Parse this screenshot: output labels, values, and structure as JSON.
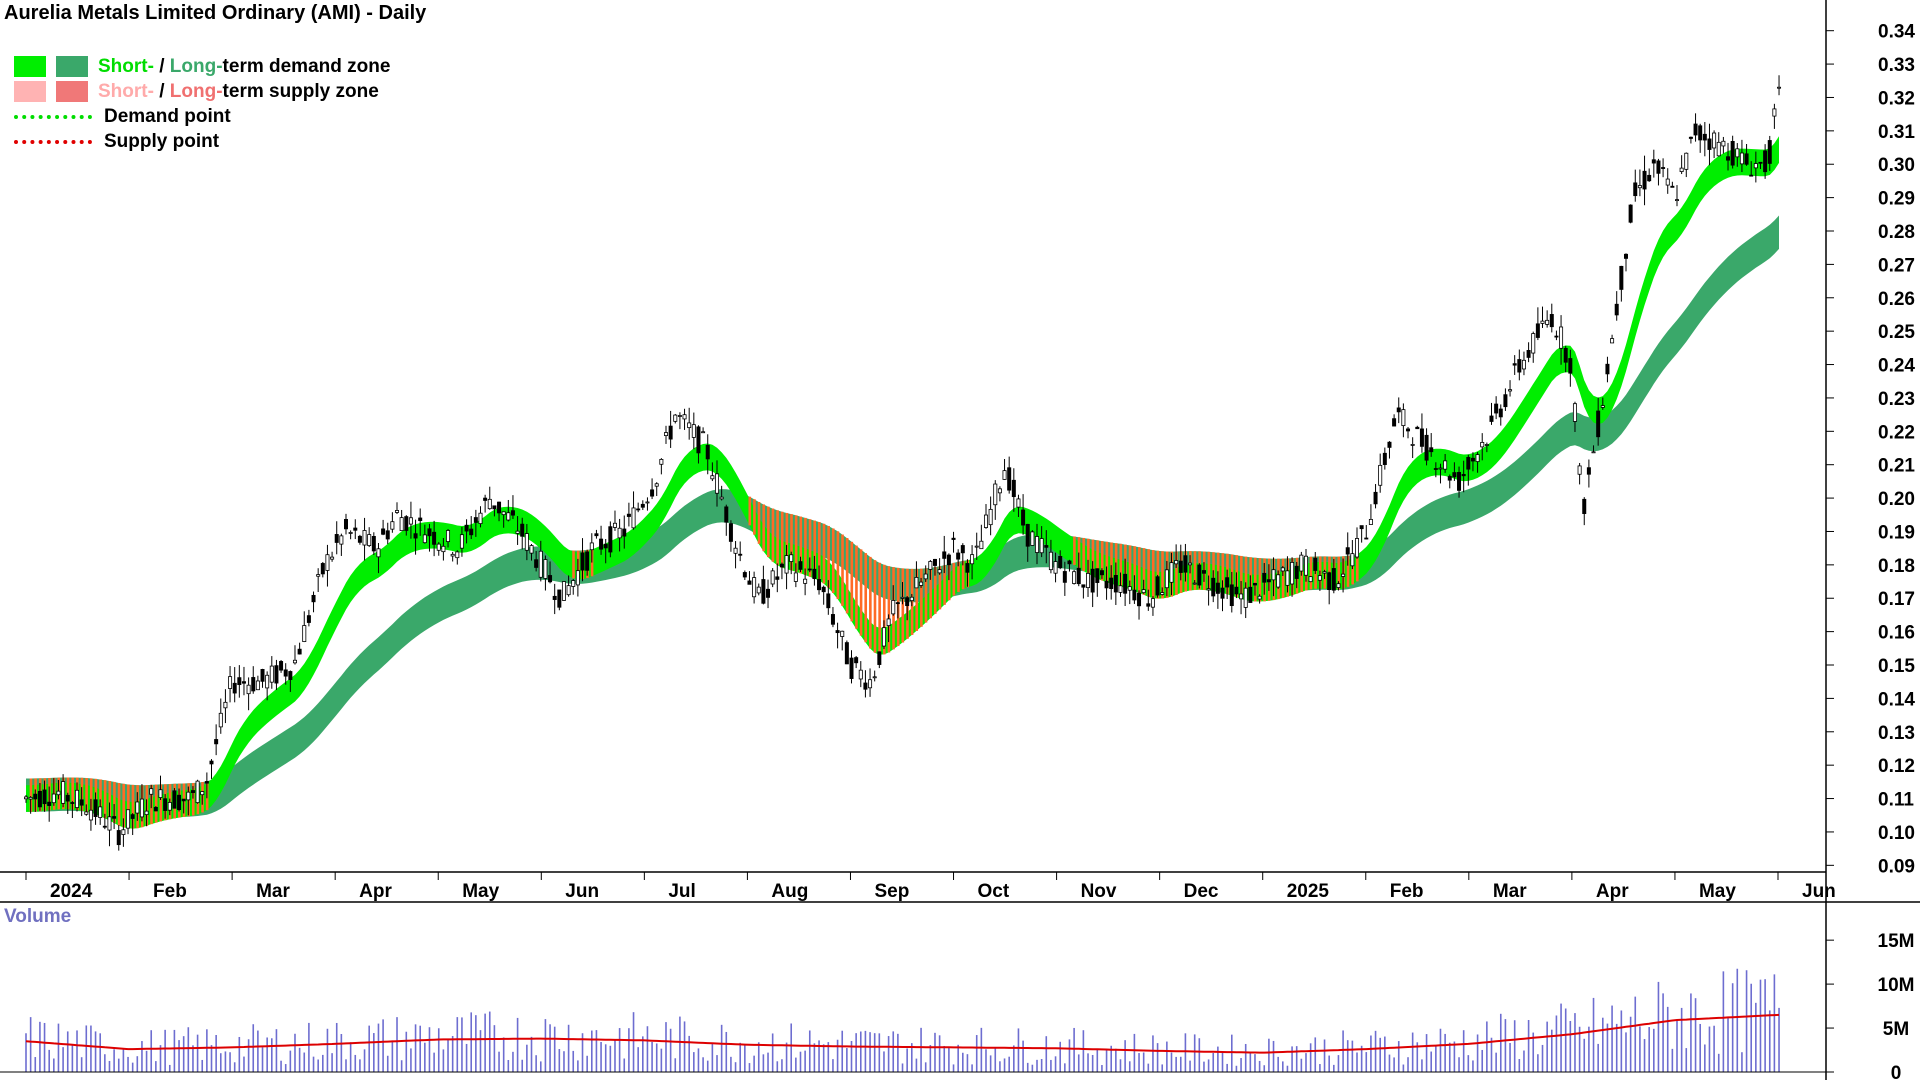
{
  "title": "Aurelia Metals Limited Ordinary (AMI) - Daily",
  "legend": {
    "row1": {
      "short": "Short-",
      "sep": " / ",
      "long": "Long-",
      "rest": "term demand zone"
    },
    "row2": {
      "short": "Short-",
      "sep": " / ",
      "long": "Long-",
      "rest": "term supply zone"
    },
    "row3": "Demand point",
    "row4": "Supply point"
  },
  "volume_label": "Volume",
  "colors": {
    "short_demand": "#00ee00",
    "long_demand": "#3aa86a",
    "short_supply": "#ffb3b3",
    "long_supply": "#f07878",
    "supply_zone_band": "#ff6a26",
    "demand_point": "#00dd00",
    "supply_point": "#e00000",
    "volume_bar": "#6d6dd0",
    "volume_avg": "#dd0000",
    "candle": "#000000"
  },
  "chart_data": {
    "type": "candlestick",
    "price_axis": {
      "ticks": [
        0.09,
        0.1,
        0.11,
        0.12,
        0.13,
        0.14,
        0.15,
        0.16,
        0.17,
        0.18,
        0.19,
        0.2,
        0.21,
        0.22,
        0.23,
        0.24,
        0.25,
        0.26,
        0.27,
        0.28,
        0.29,
        0.3,
        0.31,
        0.32,
        0.33,
        0.34
      ],
      "range": [
        0.088,
        0.345
      ]
    },
    "month_labels": [
      "2024",
      "Feb",
      "Mar",
      "Apr",
      "May",
      "Jun",
      "Jul",
      "Aug",
      "Sep",
      "Oct",
      "Nov",
      "Dec",
      "2025",
      "Feb",
      "Mar",
      "Apr",
      "May",
      "Jun"
    ],
    "month_positions": [
      0,
      1,
      2,
      3,
      4,
      5,
      6,
      7,
      8,
      9,
      10,
      11,
      12,
      13,
      14,
      15,
      16,
      17
    ],
    "price_path": [
      [
        0,
        0.11
      ],
      [
        0.3,
        0.112
      ],
      [
        0.6,
        0.108
      ],
      [
        0.9,
        0.1
      ],
      [
        1.2,
        0.11
      ],
      [
        1.6,
        0.11
      ],
      [
        1.75,
        0.115
      ],
      [
        2.0,
        0.145
      ],
      [
        2.3,
        0.145
      ],
      [
        2.6,
        0.15
      ],
      [
        2.9,
        0.18
      ],
      [
        3.1,
        0.19
      ],
      [
        3.4,
        0.185
      ],
      [
        3.6,
        0.195
      ],
      [
        3.9,
        0.19
      ],
      [
        4.2,
        0.185
      ],
      [
        4.5,
        0.2
      ],
      [
        4.8,
        0.19
      ],
      [
        5.0,
        0.18
      ],
      [
        5.2,
        0.17
      ],
      [
        5.5,
        0.185
      ],
      [
        5.8,
        0.19
      ],
      [
        6.1,
        0.205
      ],
      [
        6.3,
        0.225
      ],
      [
        6.6,
        0.215
      ],
      [
        6.9,
        0.185
      ],
      [
        7.1,
        0.17
      ],
      [
        7.4,
        0.18
      ],
      [
        7.7,
        0.175
      ],
      [
        8.0,
        0.15
      ],
      [
        8.2,
        0.145
      ],
      [
        8.4,
        0.165
      ],
      [
        8.7,
        0.175
      ],
      [
        9.0,
        0.185
      ],
      [
        9.2,
        0.18
      ],
      [
        9.5,
        0.21
      ],
      [
        9.7,
        0.19
      ],
      [
        10.0,
        0.18
      ],
      [
        10.3,
        0.175
      ],
      [
        10.6,
        0.175
      ],
      [
        10.9,
        0.17
      ],
      [
        11.2,
        0.18
      ],
      [
        11.5,
        0.175
      ],
      [
        11.8,
        0.17
      ],
      [
        12.1,
        0.175
      ],
      [
        12.4,
        0.18
      ],
      [
        12.7,
        0.175
      ],
      [
        13.0,
        0.19
      ],
      [
        13.3,
        0.225
      ],
      [
        13.6,
        0.215
      ],
      [
        13.9,
        0.205
      ],
      [
        14.2,
        0.22
      ],
      [
        14.5,
        0.24
      ],
      [
        14.8,
        0.255
      ],
      [
        15.0,
        0.24
      ],
      [
        15.1,
        0.195
      ],
      [
        15.3,
        0.23
      ],
      [
        15.6,
        0.29
      ],
      [
        15.8,
        0.3
      ],
      [
        16.0,
        0.29
      ],
      [
        16.2,
        0.31
      ],
      [
        16.5,
        0.305
      ],
      [
        16.7,
        0.3
      ],
      [
        16.9,
        0.3
      ],
      [
        17.0,
        0.32
      ]
    ],
    "series": [
      {
        "name": "Short-term demand zone",
        "type": "band"
      },
      {
        "name": "Long-term demand zone",
        "type": "band"
      },
      {
        "name": "Short-term supply zone",
        "type": "band"
      },
      {
        "name": "Long-term supply zone",
        "type": "band"
      }
    ],
    "volume_axis": {
      "ticks": [
        "0",
        "5M",
        "10M",
        "15M"
      ],
      "values": [
        0,
        5,
        10,
        15
      ],
      "max": 19,
      "unit": "M"
    },
    "volume_avg_path": [
      [
        0,
        3.5
      ],
      [
        1,
        2.6
      ],
      [
        2,
        2.8
      ],
      [
        3,
        3.2
      ],
      [
        4,
        3.7
      ],
      [
        5,
        3.8
      ],
      [
        6,
        3.6
      ],
      [
        7,
        3.1
      ],
      [
        8,
        2.9
      ],
      [
        9,
        2.8
      ],
      [
        10,
        2.7
      ],
      [
        11,
        2.4
      ],
      [
        12,
        2.2
      ],
      [
        13,
        2.6
      ],
      [
        14,
        3.2
      ],
      [
        15,
        4.3
      ],
      [
        16,
        5.9
      ],
      [
        17,
        6.5
      ]
    ]
  }
}
